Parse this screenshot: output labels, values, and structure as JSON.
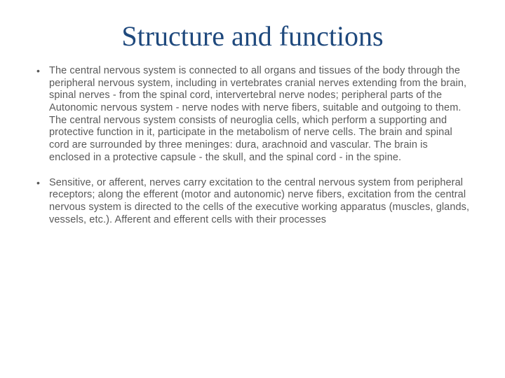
{
  "slide": {
    "title": "Structure and functions",
    "bullets": [
      "The central nervous system is connected to all organs and tissues of the body through the peripheral nervous system, including in vertebrates cranial nerves extending from the brain, spinal nerves - from the spinal cord, intervertebral nerve nodes; peripheral parts of the Autonomic nervous system - nerve nodes with nerve fibers, suitable and outgoing to them. The central nervous system consists of neuroglia cells, which perform a supporting and protective function in it, participate in the metabolism of nerve cells. The brain and spinal cord are surrounded by three meninges: dura, arachnoid and vascular. The brain is enclosed in a protective capsule - the skull, and the spinal cord - in the spine.",
      "Sensitive, or afferent, nerves carry excitation to the central nervous system from peripheral receptors; along the efferent (motor and autonomic) nerve fibers, excitation from the central nervous system is directed to the cells of the executive working apparatus (muscles, glands, vessels, etc.). Afferent and efferent cells with their processes"
    ],
    "colors": {
      "title": "#1f497d",
      "body_text": "#595959",
      "background": "#ffffff"
    },
    "fonts": {
      "title_family": "Georgia",
      "body_family": "Century Gothic",
      "title_size_pt": 40,
      "body_size_pt": 14.5
    }
  }
}
